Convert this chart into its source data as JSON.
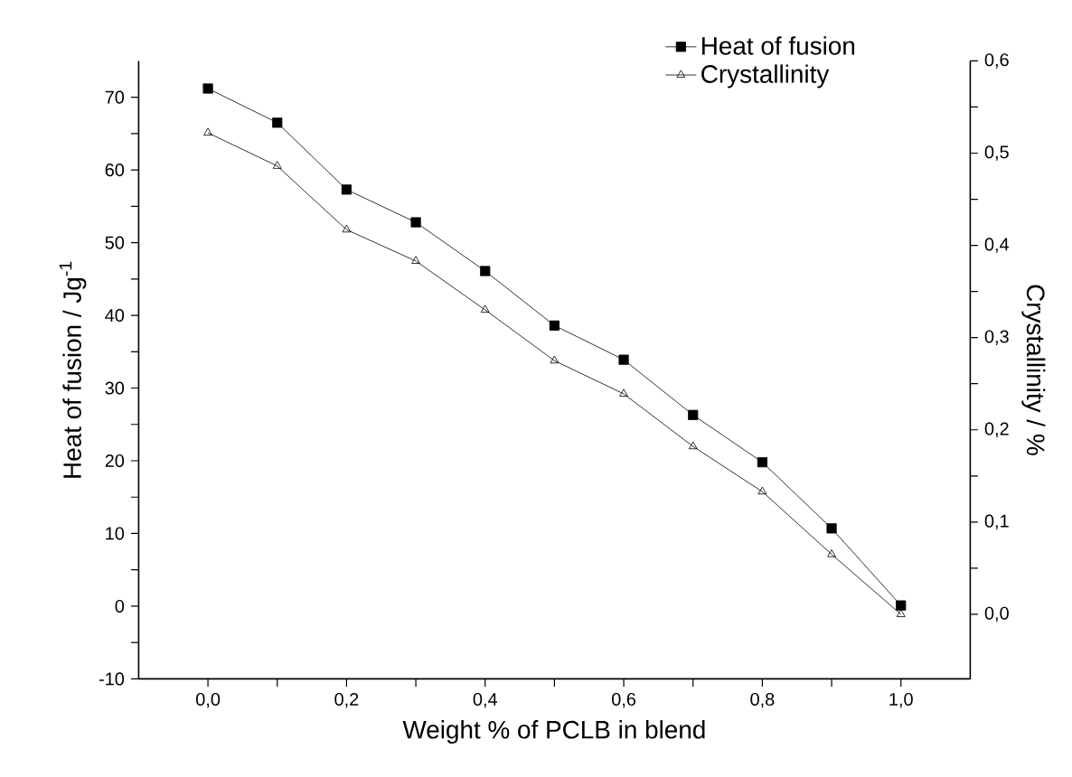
{
  "chart_data": {
    "type": "line",
    "xlabel": "Weight % of PCLB in blend",
    "ylabel": "Heat of fusion / Jg$^{-1}$",
    "y2label": "Crystallinity / %",
    "x": [
      0,
      0.1,
      0.2,
      0.3,
      0.4,
      0.5,
      0.6,
      0.7,
      0.8,
      0.9,
      1.0
    ],
    "series": [
      {
        "name": "Heat of fusion",
        "color": "#000000",
        "marker": "square",
        "values": [
          71.2,
          66.5,
          57.3,
          52.8,
          46.1,
          38.6,
          33.9,
          26.3,
          19.8,
          10.7,
          0.1
        ]
      },
      {
        "name": "Crystallinity",
        "color": "#000000",
        "marker": "triangle",
        "axis": "y2",
        "values": [
          0.522,
          0.486,
          0.417,
          0.383,
          0.33,
          0.275,
          0.239,
          0.182,
          0.133,
          0.065,
          0.0
        ]
      }
    ],
    "xlim": [
      -0.1,
      1.1
    ],
    "xticks": [
      {
        "value": 0,
        "label": "0,0"
      },
      {
        "value": 0.1,
        "label": null
      },
      {
        "value": 0.2,
        "label": "0,2"
      },
      {
        "value": 0.3,
        "label": null
      },
      {
        "value": 0.4,
        "label": "0,4"
      },
      {
        "value": 0.5,
        "label": null
      },
      {
        "value": 0.6,
        "label": "0,6"
      },
      {
        "value": 0.7,
        "label": null
      },
      {
        "value": 0.8,
        "label": "0,8"
      },
      {
        "value": 0.9,
        "label": null
      },
      {
        "value": 1.0,
        "label": "1,0"
      }
    ],
    "ylim": [
      -10,
      75
    ],
    "yticks": [
      -10,
      {
        "value": -5,
        "label": null
      },
      0,
      {
        "value": 5,
        "label": null
      },
      10,
      {
        "value": 15,
        "label": null
      },
      20,
      {
        "value": 25,
        "label": null
      },
      30,
      {
        "value": 35,
        "label": null
      },
      40,
      {
        "value": 45,
        "label": null
      },
      50,
      {
        "value": 55,
        "label": null
      },
      60,
      {
        "value": 65,
        "label": null
      },
      70
    ],
    "y2lim": [
      -0.07,
      0.6
    ],
    "y2ticks": [
      {
        "value": 0,
        "label": "0,0"
      },
      {
        "value": 0.05,
        "label": null
      },
      {
        "value": 0.1,
        "label": "0,1"
      },
      {
        "value": 0.15,
        "label": null
      },
      {
        "value": 0.2,
        "label": "0,2"
      },
      {
        "value": 0.25,
        "label": null
      },
      {
        "value": 0.3,
        "label": "0,3"
      },
      {
        "value": 0.35,
        "label": null
      },
      {
        "value": 0.4,
        "label": "0,4"
      },
      {
        "value": 0.45,
        "label": null
      },
      {
        "value": 0.5,
        "label": "0,5"
      },
      {
        "value": 0.55,
        "label": null
      },
      {
        "value": 0.6,
        "label": "0,6"
      }
    ],
    "grid": false,
    "legend": "top right",
    "line_style": "solid"
  }
}
